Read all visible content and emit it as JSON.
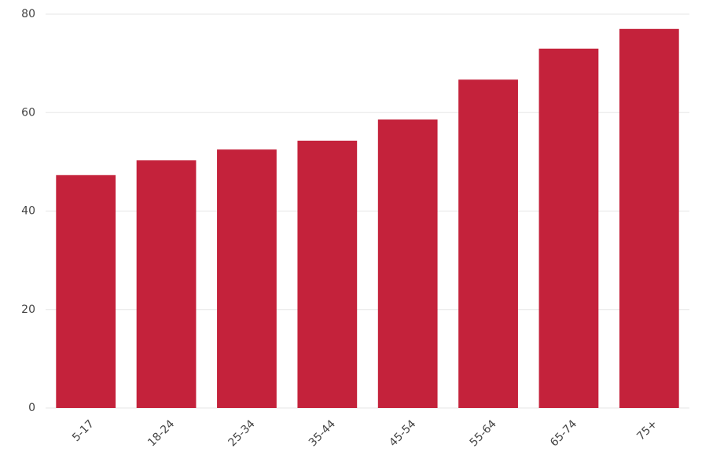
{
  "chart_data": {
    "type": "bar",
    "categories": [
      "5-17",
      "18-24",
      "25-34",
      "35-44",
      "45-54",
      "55-64",
      "65-74",
      "75+"
    ],
    "values": [
      47.3,
      50.3,
      52.5,
      54.3,
      58.6,
      66.7,
      73.0,
      77.0
    ],
    "color": "#c4223b",
    "ylim": [
      0,
      80
    ],
    "yticks": [
      0,
      20,
      40,
      60,
      80
    ],
    "grid": true
  }
}
